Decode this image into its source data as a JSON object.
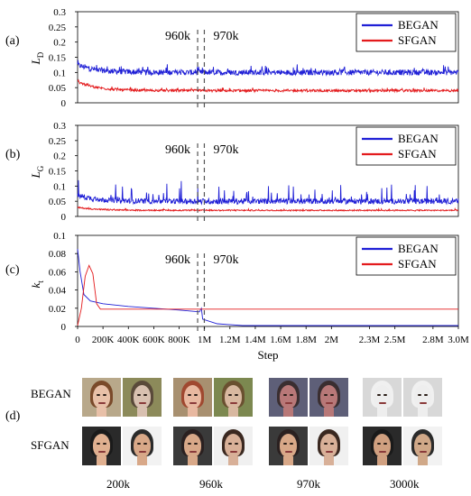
{
  "chart_data": [
    {
      "panel": "(a)",
      "type": "line",
      "ylabel_main": "L",
      "ylabel_sub": "D",
      "ylim": [
        0,
        0.3
      ],
      "yticks": [
        "0",
        "0.05",
        "0.1",
        "0.15",
        "0.2",
        "0.25",
        "0.3"
      ],
      "ytick_values": [
        0,
        0.05,
        0.1,
        0.15,
        0.2,
        0.25,
        0.3
      ],
      "legend": [
        "BEGAN",
        "SFGAN"
      ],
      "annotation_left": "960k",
      "annotation_right": "970k",
      "series": [
        {
          "name": "BEGAN",
          "color": "#1f1fd6",
          "start": 0.125,
          "level": 0.1,
          "noise": 0.009,
          "spike": 0.02
        },
        {
          "name": "SFGAN",
          "color": "#e31a1c",
          "start": 0.07,
          "level": 0.04,
          "noise": 0.004,
          "spike": 0.008
        }
      ]
    },
    {
      "panel": "(b)",
      "type": "line",
      "ylabel_main": "L",
      "ylabel_sub": "G",
      "ylim": [
        0,
        0.3
      ],
      "yticks": [
        "0",
        "0.05",
        "0.1",
        "0.15",
        "0.2",
        "0.25",
        "0.3"
      ],
      "ytick_values": [
        0,
        0.05,
        0.1,
        0.15,
        0.2,
        0.25,
        0.3
      ],
      "legend": [
        "BEGAN",
        "SFGAN"
      ],
      "annotation_left": "960k",
      "annotation_right": "970k",
      "series": [
        {
          "name": "BEGAN",
          "color": "#1f1fd6",
          "start": 0.07,
          "level": 0.05,
          "noise": 0.009,
          "spike": 0.06
        },
        {
          "name": "SFGAN",
          "color": "#e31a1c",
          "start": 0.03,
          "level": 0.02,
          "noise": 0.002,
          "spike": 0.004
        }
      ]
    },
    {
      "panel": "(c)",
      "type": "line",
      "ylabel_main": "k",
      "ylabel_sub": "t",
      "ylim": [
        0,
        0.1
      ],
      "yticks": [
        "0",
        "0.02",
        "0.04",
        "0.06",
        "0.08",
        "0.1"
      ],
      "ytick_values": [
        0,
        0.02,
        0.04,
        0.06,
        0.08,
        0.1
      ],
      "legend": [
        "BEGAN",
        "SFGAN"
      ],
      "annotation_left": "960k",
      "annotation_right": "970k",
      "xlabel": "Step",
      "xticks": [
        "0",
        "200K",
        "400K",
        "600K",
        "800K",
        "1M",
        "1.2M",
        "1.4M",
        "1.6M",
        "1.8M",
        "2M",
        "2.3M",
        "2.5M",
        "2.8M",
        "3.0M"
      ],
      "xtick_values": [
        0,
        200000,
        400000,
        600000,
        800000,
        1000000,
        1200000,
        1400000,
        1600000,
        1800000,
        2000000,
        2300000,
        2500000,
        2800000,
        3000000
      ],
      "xlim": [
        0,
        3000000
      ],
      "series": [
        {
          "name": "BEGAN",
          "color": "#1f1fd6",
          "points": [
            [
              0,
              0.085
            ],
            [
              20000,
              0.06
            ],
            [
              50000,
              0.035
            ],
            [
              100000,
              0.028
            ],
            [
              200000,
              0.025
            ],
            [
              400000,
              0.022
            ],
            [
              600000,
              0.02
            ],
            [
              800000,
              0.018
            ],
            [
              960000,
              0.016
            ],
            [
              975000,
              0.02
            ],
            [
              985000,
              0.008
            ],
            [
              1100000,
              0.003
            ],
            [
              1300000,
              0.001
            ],
            [
              3000000,
              0.001
            ]
          ]
        },
        {
          "name": "SFGAN",
          "color": "#e31a1c",
          "points": [
            [
              0,
              0.001
            ],
            [
              30000,
              0.02
            ],
            [
              60000,
              0.055
            ],
            [
              90000,
              0.067
            ],
            [
              120000,
              0.058
            ],
            [
              150000,
              0.025
            ],
            [
              180000,
              0.019
            ],
            [
              250000,
              0.019
            ],
            [
              3000000,
              0.019
            ]
          ]
        }
      ]
    }
  ],
  "divider_steps": [
    960000,
    970000
  ],
  "samples": {
    "panel_label": "(d)",
    "rows": [
      "BEGAN",
      "SFGAN"
    ],
    "columns": [
      "200k",
      "960k",
      "970k",
      "3000k"
    ]
  }
}
